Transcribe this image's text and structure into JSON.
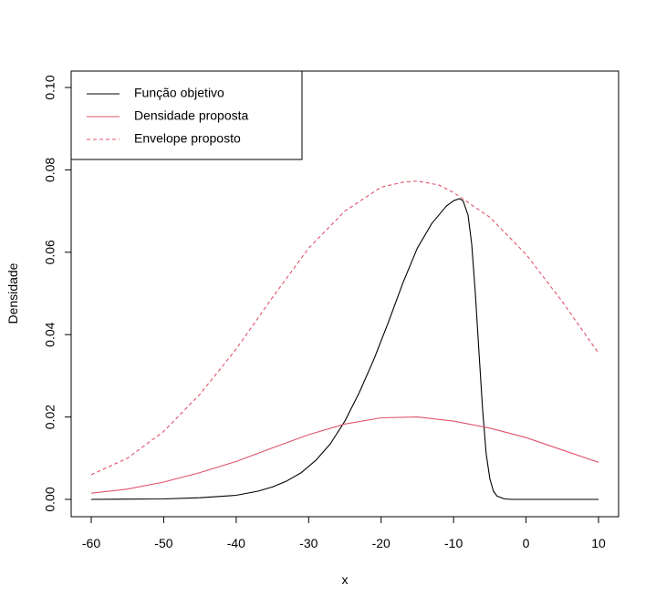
{
  "chart_data": {
    "type": "line",
    "title": "",
    "xlabel": "x",
    "ylabel": "Densidade",
    "xlim": [
      -60,
      10
    ],
    "ylim": [
      0,
      0.1
    ],
    "x_ticks": [
      -60,
      -50,
      -40,
      -30,
      -20,
      -10,
      0,
      10
    ],
    "x_tick_labels": [
      "-60",
      "-50",
      "-40",
      "-30",
      "-20",
      "-10",
      "0",
      "10"
    ],
    "y_ticks": [
      0,
      0.02,
      0.04,
      0.06,
      0.08,
      0.1
    ],
    "y_tick_labels": [
      "0.00",
      "0.02",
      "0.04",
      "0.06",
      "0.08",
      "0.10"
    ],
    "grid": false,
    "legend_position": "top-left",
    "series": [
      {
        "name": "Função objetivo",
        "color": "#000000",
        "dash": "solid",
        "x": [
          -60,
          -50,
          -45,
          -40,
          -37,
          -35,
          -33,
          -31,
          -29,
          -27,
          -25,
          -23,
          -21,
          -19,
          -17,
          -15,
          -13,
          -11,
          -10,
          -9.2,
          -8.7,
          -8,
          -7.5,
          -7,
          -6.5,
          -6,
          -5.5,
          -5,
          -4.5,
          -4,
          -3,
          -2,
          0,
          10
        ],
        "y": [
          0,
          0.0001,
          0.0004,
          0.001,
          0.002,
          0.003,
          0.0045,
          0.0065,
          0.0095,
          0.0135,
          0.019,
          0.026,
          0.034,
          0.043,
          0.0525,
          0.061,
          0.067,
          0.0712,
          0.0725,
          0.073,
          0.0725,
          0.069,
          0.062,
          0.05,
          0.036,
          0.022,
          0.011,
          0.005,
          0.002,
          0.0008,
          0.0001,
          0,
          0,
          0
        ]
      },
      {
        "name": "Densidade proposta",
        "color": "#df536b",
        "dash": "solid",
        "x": [
          -60,
          -55,
          -50,
          -45,
          -40,
          -35,
          -30,
          -25,
          -20,
          -15,
          -10,
          -5,
          0,
          5,
          10
        ],
        "y": [
          0.0015,
          0.0025,
          0.0042,
          0.0065,
          0.0092,
          0.0125,
          0.0157,
          0.0183,
          0.0198,
          0.02,
          0.019,
          0.0173,
          0.015,
          0.012,
          0.009
        ]
      },
      {
        "name": "Envelope proposto",
        "color": "#df536b",
        "dash": "dashed",
        "x": [
          -60,
          -55,
          -50,
          -45,
          -40,
          -35,
          -30,
          -25,
          -20,
          -17,
          -15,
          -12,
          -10,
          -5,
          0,
          5,
          10
        ],
        "y": [
          0.006,
          0.01,
          0.0165,
          0.0255,
          0.0365,
          0.049,
          0.061,
          0.07,
          0.0758,
          0.077,
          0.0773,
          0.0763,
          0.0745,
          0.0685,
          0.0595,
          0.048,
          0.0355
        ]
      }
    ]
  }
}
